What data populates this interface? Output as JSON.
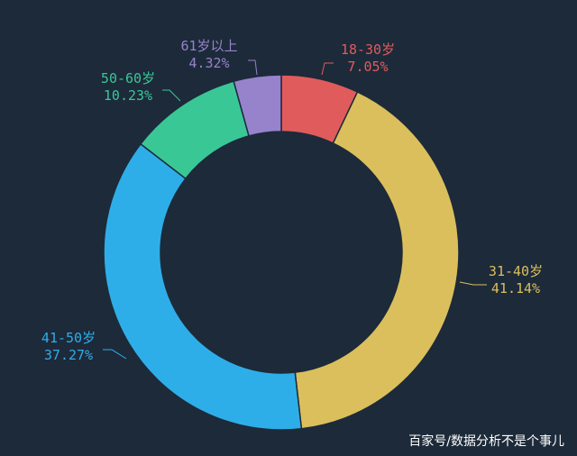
{
  "chart_data": {
    "type": "pie",
    "variant": "donut",
    "start_angle_deg": 90,
    "direction": "clockwise",
    "slices": [
      {
        "name": "18-30岁",
        "value": 7.05,
        "label": "7.05%",
        "color": "#e05c5c"
      },
      {
        "name": "31-40岁",
        "value": 41.14,
        "label": "41.14%",
        "color": "#dbbf5c"
      },
      {
        "name": "41-50岁",
        "value": 37.27,
        "label": "37.27%",
        "color": "#2eaee8"
      },
      {
        "name": "50-60岁",
        "value": 10.23,
        "label": "10.23%",
        "color": "#3ac796"
      },
      {
        "name": "61岁以上",
        "value": 4.32,
        "label": "4.32%",
        "color": "#9683cc"
      }
    ]
  },
  "background_color": "#1d2a3a",
  "watermark": "百家号/数据分析不是个事儿"
}
